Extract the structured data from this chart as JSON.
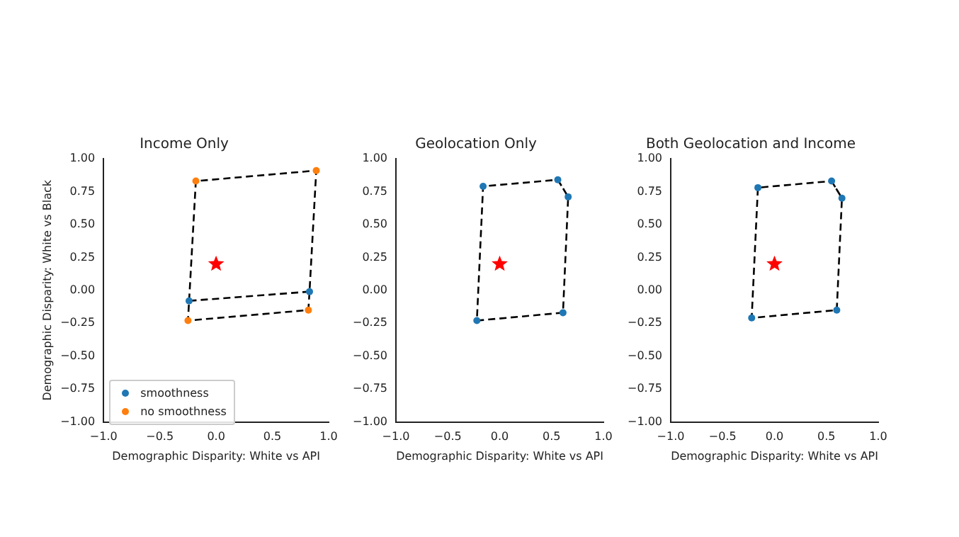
{
  "chart_data": [
    {
      "type": "scatter",
      "title": "Income Only",
      "xlabel": "Demographic Disparity: White vs API",
      "ylabel": "Demographic Disparity: White vs Black",
      "xlim": [
        -1,
        1
      ],
      "ylim": [
        -1,
        1
      ],
      "xticks": [
        {
          "value": -1,
          "label": "−1.0"
        },
        {
          "value": -0.5,
          "label": "−0.5"
        },
        {
          "value": 0,
          "label": "0.0"
        },
        {
          "value": 0.5,
          "label": "0.5"
        },
        {
          "value": 1,
          "label": "1.0"
        }
      ],
      "yticks": [
        {
          "value": -1,
          "label": "−1.00"
        },
        {
          "value": -0.75,
          "label": "−0.75"
        },
        {
          "value": -0.5,
          "label": "−0.50"
        },
        {
          "value": -0.25,
          "label": "−0.25"
        },
        {
          "value": 0,
          "label": "0.00"
        },
        {
          "value": 0.25,
          "label": "0.25"
        },
        {
          "value": 0.5,
          "label": "0.50"
        },
        {
          "value": 0.75,
          "label": "0.75"
        },
        {
          "value": 1,
          "label": "1.00"
        }
      ],
      "grid": false,
      "legend": "bottom left",
      "series": [
        {
          "type": "line",
          "color": "#000000",
          "line_style": "dashed",
          "marker": "none",
          "x": [
            0.83,
            -0.24,
            -0.25,
            0.82,
            0.83,
            0.89,
            -0.18,
            -0.24
          ],
          "values": [
            -0.01,
            -0.08,
            -0.23,
            -0.15,
            -0.01,
            0.91,
            0.83,
            -0.08
          ]
        },
        {
          "type": "scatter",
          "name": "smoothness",
          "color": "#1f77b4",
          "marker": "circle",
          "x": [
            -0.24,
            0.83
          ],
          "values": [
            -0.08,
            -0.01
          ]
        },
        {
          "type": "scatter",
          "name": "no smoothness",
          "color": "#ff7f0e",
          "marker": "circle",
          "x": [
            -0.18,
            0.89,
            0.82,
            -0.25
          ],
          "values": [
            0.83,
            0.91,
            -0.15,
            -0.23
          ]
        },
        {
          "type": "scatter",
          "color": "#ff0000",
          "marker": "star",
          "x": [
            0
          ],
          "values": [
            0.2
          ]
        }
      ]
    },
    {
      "type": "scatter",
      "title": "Geolocation Only",
      "xlabel": "Demographic Disparity: White vs API",
      "xlim": [
        -1,
        1
      ],
      "ylim": [
        -1,
        1
      ],
      "xticks": [
        {
          "value": -1,
          "label": "−1.0"
        },
        {
          "value": -0.5,
          "label": "−0.5"
        },
        {
          "value": 0,
          "label": "0.0"
        },
        {
          "value": 0.5,
          "label": "0.5"
        },
        {
          "value": 1,
          "label": "1.0"
        }
      ],
      "yticks": [
        {
          "value": -1,
          "label": "−1.00"
        },
        {
          "value": -0.75,
          "label": "−0.75"
        },
        {
          "value": -0.5,
          "label": "−0.50"
        },
        {
          "value": -0.25,
          "label": "−0.25"
        },
        {
          "value": 0,
          "label": "0.00"
        },
        {
          "value": 0.25,
          "label": "0.25"
        },
        {
          "value": 0.5,
          "label": "0.50"
        },
        {
          "value": 0.75,
          "label": "0.75"
        },
        {
          "value": 1,
          "label": "1.00"
        }
      ],
      "grid": false,
      "legend": false,
      "series": [
        {
          "type": "line",
          "color": "#000000",
          "line_style": "dashed",
          "marker": "none",
          "x": [
            0.56,
            0.66,
            0.61,
            -0.22,
            -0.16,
            0.56,
            0.66
          ],
          "values": [
            0.84,
            0.71,
            -0.17,
            -0.23,
            0.79,
            0.84,
            0.71
          ]
        },
        {
          "type": "scatter",
          "color": "#1f77b4",
          "marker": "circle",
          "x": [
            -0.16,
            0.56,
            0.66,
            0.61,
            -0.22
          ],
          "values": [
            0.79,
            0.84,
            0.71,
            -0.17,
            -0.23
          ]
        },
        {
          "type": "scatter",
          "color": "#ff0000",
          "marker": "star",
          "x": [
            0
          ],
          "values": [
            0.2
          ]
        }
      ]
    },
    {
      "type": "scatter",
      "title": "Both Geolocation and Income",
      "xlabel": "Demographic Disparity: White vs API",
      "xlim": [
        -1,
        1
      ],
      "ylim": [
        -1,
        1
      ],
      "xticks": [
        {
          "value": -1,
          "label": "−1.0"
        },
        {
          "value": -0.5,
          "label": "−0.5"
        },
        {
          "value": 0,
          "label": "0.0"
        },
        {
          "value": 0.5,
          "label": "0.5"
        },
        {
          "value": 1,
          "label": "1.0"
        }
      ],
      "yticks": [
        {
          "value": -1,
          "label": "−1.00"
        },
        {
          "value": -0.75,
          "label": "−0.75"
        },
        {
          "value": -0.5,
          "label": "−0.50"
        },
        {
          "value": -0.25,
          "label": "−0.25"
        },
        {
          "value": 0,
          "label": "0.00"
        },
        {
          "value": 0.25,
          "label": "0.25"
        },
        {
          "value": 0.5,
          "label": "0.50"
        },
        {
          "value": 0.75,
          "label": "0.75"
        },
        {
          "value": 1,
          "label": "1.00"
        }
      ],
      "grid": false,
      "legend": false,
      "series": [
        {
          "type": "line",
          "color": "#000000",
          "line_style": "dashed",
          "marker": "none",
          "x": [
            0.55,
            0.65,
            0.6,
            -0.22,
            -0.16,
            0.55,
            0.65
          ],
          "values": [
            0.83,
            0.7,
            -0.15,
            -0.21,
            0.78,
            0.83,
            0.7
          ]
        },
        {
          "type": "scatter",
          "color": "#1f77b4",
          "marker": "circle",
          "x": [
            -0.16,
            0.55,
            0.65,
            0.6,
            -0.22
          ],
          "values": [
            0.78,
            0.83,
            0.7,
            -0.15,
            -0.21
          ]
        },
        {
          "type": "scatter",
          "color": "#ff0000",
          "marker": "star",
          "x": [
            0
          ],
          "values": [
            0.2
          ]
        }
      ]
    }
  ]
}
